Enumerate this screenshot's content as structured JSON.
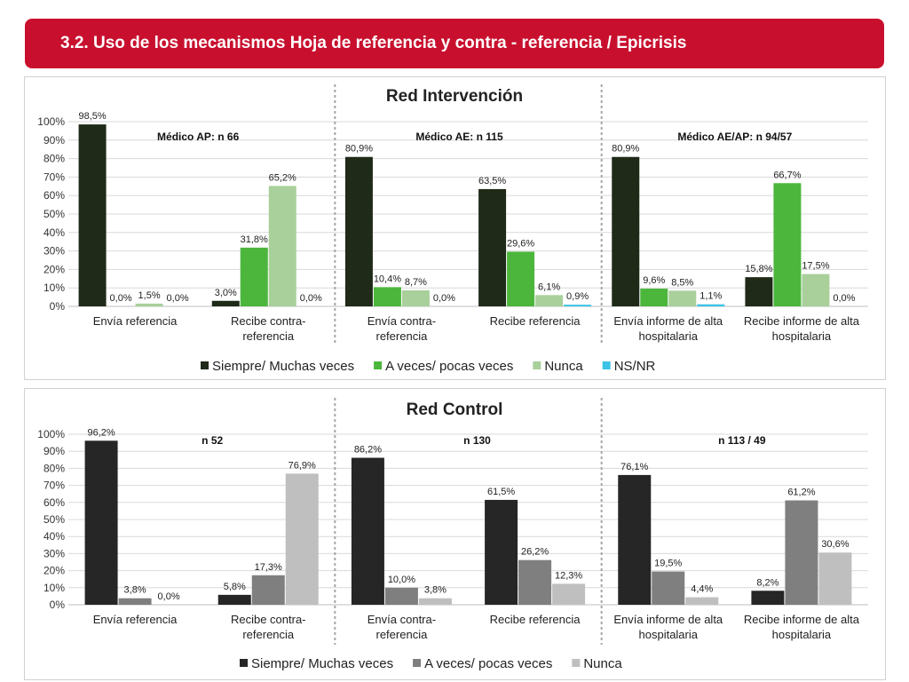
{
  "header": {
    "title": "3.2. Uso de los mecanismos Hoja de referencia y contra - referencia / Epicrisis"
  },
  "chart_data": [
    {
      "type": "bar",
      "title": "Red Intervención",
      "ylim": [
        0,
        100
      ],
      "yticks": [
        "0%",
        "10%",
        "20%",
        "30%",
        "40%",
        "50%",
        "60%",
        "70%",
        "80%",
        "90%",
        "100%"
      ],
      "grid": true,
      "legend_position": "bottom",
      "groups": [
        {
          "label": "Médico AP: n 66"
        },
        {
          "label": "Médico AE: n 115"
        },
        {
          "label": "Médico AE/AP: n 94/57"
        }
      ],
      "categories": [
        [
          "Envía referencia"
        ],
        [
          "Recibe contra-",
          "referencia"
        ],
        [
          "Envía contra-",
          "referencia"
        ],
        [
          "Recibe referencia"
        ],
        [
          "Envía informe de alta",
          "hospitalaria"
        ],
        [
          "Recibe informe de alta",
          "hospitalaria"
        ]
      ],
      "series": [
        {
          "name": "Siempre/ Muchas veces",
          "color": "#1f2a18",
          "values": [
            98.5,
            3.0,
            80.9,
            63.5,
            80.9,
            15.8
          ],
          "labels": [
            "98,5%",
            "3,0%",
            "80,9%",
            "63,5%",
            "80,9%",
            "15,8%"
          ]
        },
        {
          "name": "A veces/ pocas veces",
          "color": "#4cb63c",
          "values": [
            0.0,
            31.8,
            10.4,
            29.6,
            9.6,
            66.7
          ],
          "labels": [
            "0,0%",
            "31,8%",
            "10,4%",
            "29,6%",
            "9,6%",
            "66,7%"
          ]
        },
        {
          "name": "Nunca",
          "color": "#a9d09b",
          "values": [
            1.5,
            65.2,
            8.7,
            6.1,
            8.5,
            17.5
          ],
          "labels": [
            "1,5%",
            "65,2%",
            "8,7%",
            "6,1%",
            "8,5%",
            "17,5%"
          ]
        },
        {
          "name": "NS/NR",
          "color": "#3bc4e6",
          "values": [
            0.0,
            0.0,
            0.0,
            0.9,
            1.1,
            0.0
          ],
          "labels": [
            "0,0%",
            "0,0%",
            "0,0%",
            "0,9%",
            "1,1%",
            "0,0%"
          ]
        }
      ]
    },
    {
      "type": "bar",
      "title": "Red Control",
      "ylim": [
        0,
        100
      ],
      "yticks": [
        "0%",
        "10%",
        "20%",
        "30%",
        "40%",
        "50%",
        "60%",
        "70%",
        "80%",
        "90%",
        "100%"
      ],
      "grid": true,
      "legend_position": "bottom",
      "groups": [
        {
          "label": "n 52"
        },
        {
          "label": "n 130"
        },
        {
          "label": "n 113 / 49"
        }
      ],
      "categories": [
        [
          "Envía referencia"
        ],
        [
          "Recibe contra-",
          "referencia"
        ],
        [
          "Envía contra-",
          "referencia"
        ],
        [
          "Recibe referencia"
        ],
        [
          "Envía informe de alta",
          "hospitalaria"
        ],
        [
          "Recibe informe de alta",
          "hospitalaria"
        ]
      ],
      "series": [
        {
          "name": "Siempre/ Muchas veces",
          "color": "#262626",
          "values": [
            96.2,
            5.8,
            86.2,
            61.5,
            76.1,
            8.2
          ],
          "labels": [
            "96,2%",
            "5,8%",
            "86,2%",
            "61,5%",
            "76,1%",
            "8,2%"
          ]
        },
        {
          "name": "A veces/ pocas veces",
          "color": "#7f7f7f",
          "values": [
            3.8,
            17.3,
            10.0,
            26.2,
            19.5,
            61.2
          ],
          "labels": [
            "3,8%",
            "17,3%",
            "10,0%",
            "26,2%",
            "19,5%",
            "61,2%"
          ]
        },
        {
          "name": "Nunca",
          "color": "#bfbfbf",
          "values": [
            0.0,
            76.9,
            3.8,
            12.3,
            4.4,
            30.6
          ],
          "labels": [
            "0,0%",
            "76,9%",
            "3,8%",
            "12,3%",
            "4,4%",
            "30,6%"
          ]
        }
      ]
    }
  ]
}
